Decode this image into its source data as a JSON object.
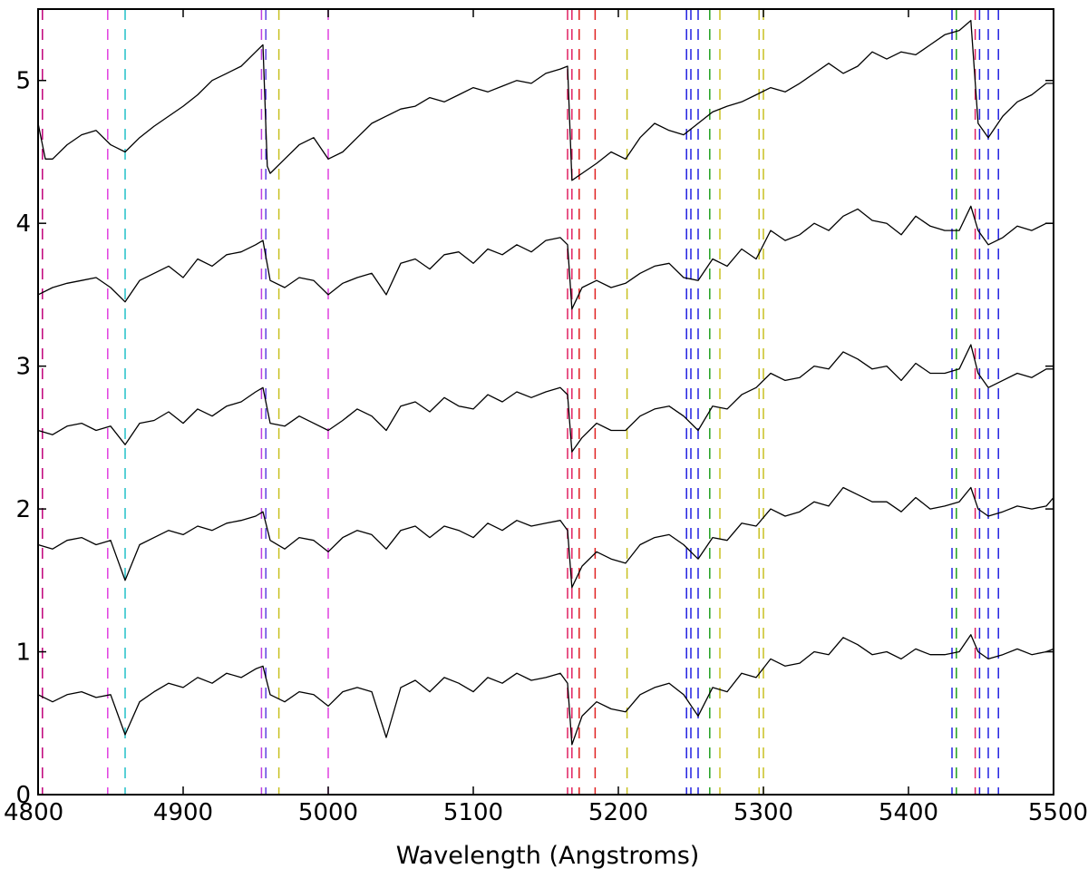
{
  "chart_data": {
    "type": "line",
    "title": "",
    "xlabel": "Wavelength (Angstroms)",
    "ylabel": "",
    "xlim": [
      4800,
      5500
    ],
    "ylim": [
      0,
      5.5
    ],
    "grid": false,
    "x_ticks": [
      4800,
      4900,
      5000,
      5100,
      5200,
      5300,
      5400,
      5500
    ],
    "x_tick_labels": [
      "4800",
      "4900",
      "5000",
      "5100",
      "5200",
      "5300",
      "5400",
      "5500"
    ],
    "y_ticks": [
      0,
      1,
      2,
      3,
      4,
      5
    ],
    "y_tick_labels": [
      "0",
      "1",
      "2",
      "3",
      "4",
      "5"
    ],
    "line_color": "#000000",
    "series": [
      {
        "x": [
          4800,
          4805,
          4810,
          4820,
          4830,
          4840,
          4850,
          4860,
          4870,
          4880,
          4890,
          4900,
          4910,
          4920,
          4930,
          4940,
          4950,
          4955,
          4958,
          4960,
          4970,
          4980,
          4990,
          5000,
          5010,
          5020,
          5030,
          5040,
          5050,
          5060,
          5070,
          5080,
          5090,
          5100,
          5110,
          5120,
          5130,
          5140,
          5150,
          5160,
          5165,
          5168,
          5175,
          5185,
          5195,
          5205,
          5215,
          5225,
          5235,
          5245,
          5255,
          5265,
          5275,
          5285,
          5295,
          5305,
          5315,
          5325,
          5335,
          5345,
          5355,
          5365,
          5375,
          5385,
          5395,
          5405,
          5415,
          5425,
          5435,
          5443,
          5448,
          5455,
          5465,
          5475,
          5485,
          5495,
          5500
        ],
        "values": [
          4.7,
          4.45,
          4.45,
          4.55,
          4.62,
          4.65,
          4.55,
          4.5,
          4.6,
          4.68,
          4.75,
          4.82,
          4.9,
          5.0,
          5.05,
          5.1,
          5.2,
          5.25,
          4.4,
          4.35,
          4.45,
          4.55,
          4.6,
          4.45,
          4.5,
          4.6,
          4.7,
          4.75,
          4.8,
          4.82,
          4.88,
          4.85,
          4.9,
          4.95,
          4.92,
          4.96,
          5.0,
          4.98,
          5.05,
          5.08,
          5.1,
          4.3,
          4.35,
          4.42,
          4.5,
          4.45,
          4.6,
          4.7,
          4.65,
          4.62,
          4.7,
          4.78,
          4.82,
          4.85,
          4.9,
          4.95,
          4.92,
          4.98,
          5.05,
          5.12,
          5.05,
          5.1,
          5.2,
          5.15,
          5.2,
          5.18,
          5.25,
          5.32,
          5.35,
          5.42,
          4.7,
          4.6,
          4.75,
          4.85,
          4.9,
          4.98,
          4.98
        ]
      },
      {
        "x": [
          4800,
          4810,
          4820,
          4830,
          4840,
          4850,
          4860,
          4870,
          4880,
          4890,
          4900,
          4910,
          4920,
          4930,
          4940,
          4950,
          4955,
          4960,
          4970,
          4980,
          4990,
          5000,
          5010,
          5020,
          5030,
          5040,
          5050,
          5060,
          5070,
          5080,
          5090,
          5100,
          5110,
          5120,
          5130,
          5140,
          5150,
          5160,
          5165,
          5168,
          5175,
          5185,
          5195,
          5205,
          5215,
          5225,
          5235,
          5245,
          5255,
          5265,
          5275,
          5285,
          5295,
          5305,
          5315,
          5325,
          5335,
          5345,
          5355,
          5365,
          5375,
          5385,
          5395,
          5405,
          5415,
          5425,
          5435,
          5443,
          5448,
          5455,
          5465,
          5475,
          5485,
          5495,
          5500
        ],
        "values": [
          3.5,
          3.55,
          3.58,
          3.6,
          3.62,
          3.55,
          3.45,
          3.6,
          3.65,
          3.7,
          3.62,
          3.75,
          3.7,
          3.78,
          3.8,
          3.85,
          3.88,
          3.6,
          3.55,
          3.62,
          3.6,
          3.5,
          3.58,
          3.62,
          3.65,
          3.5,
          3.72,
          3.75,
          3.68,
          3.78,
          3.8,
          3.72,
          3.82,
          3.78,
          3.85,
          3.8,
          3.88,
          3.9,
          3.85,
          3.4,
          3.55,
          3.6,
          3.55,
          3.58,
          3.65,
          3.7,
          3.72,
          3.62,
          3.6,
          3.75,
          3.7,
          3.82,
          3.75,
          3.95,
          3.88,
          3.92,
          4.0,
          3.95,
          4.05,
          4.1,
          4.02,
          4.0,
          3.92,
          4.05,
          3.98,
          3.95,
          3.95,
          4.12,
          3.95,
          3.85,
          3.9,
          3.98,
          3.95,
          4.0,
          4.0
        ]
      },
      {
        "x": [
          4800,
          4810,
          4820,
          4830,
          4840,
          4850,
          4860,
          4870,
          4880,
          4890,
          4900,
          4910,
          4920,
          4930,
          4940,
          4950,
          4955,
          4960,
          4970,
          4980,
          4990,
          5000,
          5010,
          5020,
          5030,
          5040,
          5050,
          5060,
          5070,
          5080,
          5090,
          5100,
          5110,
          5120,
          5130,
          5140,
          5150,
          5160,
          5165,
          5168,
          5175,
          5185,
          5195,
          5205,
          5215,
          5225,
          5235,
          5245,
          5255,
          5265,
          5275,
          5285,
          5295,
          5305,
          5315,
          5325,
          5335,
          5345,
          5355,
          5365,
          5375,
          5385,
          5395,
          5405,
          5415,
          5425,
          5435,
          5443,
          5448,
          5455,
          5465,
          5475,
          5485,
          5495,
          5500
        ],
        "values": [
          2.55,
          2.52,
          2.58,
          2.6,
          2.55,
          2.58,
          2.45,
          2.6,
          2.62,
          2.68,
          2.6,
          2.7,
          2.65,
          2.72,
          2.75,
          2.82,
          2.85,
          2.6,
          2.58,
          2.65,
          2.6,
          2.55,
          2.62,
          2.7,
          2.65,
          2.55,
          2.72,
          2.75,
          2.68,
          2.78,
          2.72,
          2.7,
          2.8,
          2.75,
          2.82,
          2.78,
          2.82,
          2.85,
          2.8,
          2.4,
          2.5,
          2.6,
          2.55,
          2.55,
          2.65,
          2.7,
          2.72,
          2.65,
          2.55,
          2.72,
          2.7,
          2.8,
          2.85,
          2.95,
          2.9,
          2.92,
          3.0,
          2.98,
          3.1,
          3.05,
          2.98,
          3.0,
          2.9,
          3.02,
          2.95,
          2.95,
          2.98,
          3.15,
          2.95,
          2.85,
          2.9,
          2.95,
          2.92,
          2.98,
          2.98
        ]
      },
      {
        "x": [
          4800,
          4810,
          4820,
          4830,
          4840,
          4850,
          4860,
          4870,
          4880,
          4890,
          4900,
          4910,
          4920,
          4930,
          4940,
          4950,
          4955,
          4960,
          4970,
          4980,
          4990,
          5000,
          5010,
          5020,
          5030,
          5040,
          5050,
          5060,
          5070,
          5080,
          5090,
          5100,
          5110,
          5120,
          5130,
          5140,
          5150,
          5160,
          5165,
          5168,
          5175,
          5185,
          5195,
          5205,
          5215,
          5225,
          5235,
          5245,
          5255,
          5265,
          5275,
          5285,
          5295,
          5305,
          5315,
          5325,
          5335,
          5345,
          5355,
          5365,
          5375,
          5385,
          5395,
          5405,
          5415,
          5425,
          5435,
          5443,
          5448,
          5455,
          5465,
          5475,
          5485,
          5495,
          5500
        ],
        "values": [
          1.75,
          1.72,
          1.78,
          1.8,
          1.75,
          1.78,
          1.5,
          1.75,
          1.8,
          1.85,
          1.82,
          1.88,
          1.85,
          1.9,
          1.92,
          1.95,
          1.98,
          1.78,
          1.72,
          1.8,
          1.78,
          1.7,
          1.8,
          1.85,
          1.82,
          1.72,
          1.85,
          1.88,
          1.8,
          1.88,
          1.85,
          1.8,
          1.9,
          1.85,
          1.92,
          1.88,
          1.9,
          1.92,
          1.85,
          1.45,
          1.6,
          1.7,
          1.65,
          1.62,
          1.75,
          1.8,
          1.82,
          1.75,
          1.65,
          1.8,
          1.78,
          1.9,
          1.88,
          2.0,
          1.95,
          1.98,
          2.05,
          2.02,
          2.15,
          2.1,
          2.05,
          2.05,
          1.98,
          2.08,
          2.0,
          2.02,
          2.05,
          2.15,
          2.0,
          1.95,
          1.98,
          2.02,
          2.0,
          2.02,
          2.08
        ]
      },
      {
        "x": [
          4800,
          4810,
          4820,
          4830,
          4840,
          4850,
          4860,
          4870,
          4880,
          4890,
          4900,
          4910,
          4920,
          4930,
          4940,
          4950,
          4955,
          4960,
          4970,
          4980,
          4990,
          5000,
          5010,
          5020,
          5030,
          5040,
          5050,
          5060,
          5070,
          5080,
          5090,
          5100,
          5110,
          5120,
          5130,
          5140,
          5150,
          5160,
          5165,
          5168,
          5175,
          5185,
          5195,
          5205,
          5215,
          5225,
          5235,
          5245,
          5255,
          5265,
          5275,
          5285,
          5295,
          5305,
          5315,
          5325,
          5335,
          5345,
          5355,
          5365,
          5375,
          5385,
          5395,
          5405,
          5415,
          5425,
          5435,
          5443,
          5448,
          5455,
          5465,
          5475,
          5485,
          5495,
          5500
        ],
        "values": [
          0.7,
          0.65,
          0.7,
          0.72,
          0.68,
          0.7,
          0.42,
          0.65,
          0.72,
          0.78,
          0.75,
          0.82,
          0.78,
          0.85,
          0.82,
          0.88,
          0.9,
          0.7,
          0.65,
          0.72,
          0.7,
          0.62,
          0.72,
          0.75,
          0.72,
          0.4,
          0.75,
          0.8,
          0.72,
          0.82,
          0.78,
          0.72,
          0.82,
          0.78,
          0.85,
          0.8,
          0.82,
          0.85,
          0.78,
          0.35,
          0.55,
          0.65,
          0.6,
          0.58,
          0.7,
          0.75,
          0.78,
          0.7,
          0.55,
          0.75,
          0.72,
          0.85,
          0.82,
          0.95,
          0.9,
          0.92,
          1.0,
          0.98,
          1.1,
          1.05,
          0.98,
          1.0,
          0.95,
          1.02,
          0.98,
          0.98,
          1.0,
          1.12,
          1.0,
          0.95,
          0.98,
          1.02,
          0.98,
          1.0,
          1.02
        ]
      }
    ],
    "reference_lines": [
      {
        "x": 4803,
        "color": "#c0007a"
      },
      {
        "x": 4848,
        "color": "#e040e0"
      },
      {
        "x": 4860,
        "color": "#20c0c8"
      },
      {
        "x": 4954,
        "color": "#c040e0"
      },
      {
        "x": 4957,
        "color": "#6040e0"
      },
      {
        "x": 4966,
        "color": "#c8c020"
      },
      {
        "x": 5000,
        "color": "#e040e0"
      },
      {
        "x": 5165,
        "color": "#e02060"
      },
      {
        "x": 5168,
        "color": "#e02060"
      },
      {
        "x": 5173,
        "color": "#e02020"
      },
      {
        "x": 5184,
        "color": "#e02020"
      },
      {
        "x": 5206,
        "color": "#c8c020"
      },
      {
        "x": 5247,
        "color": "#2020e0"
      },
      {
        "x": 5250,
        "color": "#2020e0"
      },
      {
        "x": 5255,
        "color": "#2020e0"
      },
      {
        "x": 5263,
        "color": "#20a020"
      },
      {
        "x": 5270,
        "color": "#c8c020"
      },
      {
        "x": 5297,
        "color": "#c8c020"
      },
      {
        "x": 5300,
        "color": "#c8c020"
      },
      {
        "x": 5430,
        "color": "#2020e0"
      },
      {
        "x": 5433,
        "color": "#20a020"
      },
      {
        "x": 5446,
        "color": "#e02060"
      },
      {
        "x": 5449,
        "color": "#2020e0"
      },
      {
        "x": 5455,
        "color": "#2020e0"
      },
      {
        "x": 5462,
        "color": "#2020e0"
      }
    ]
  }
}
